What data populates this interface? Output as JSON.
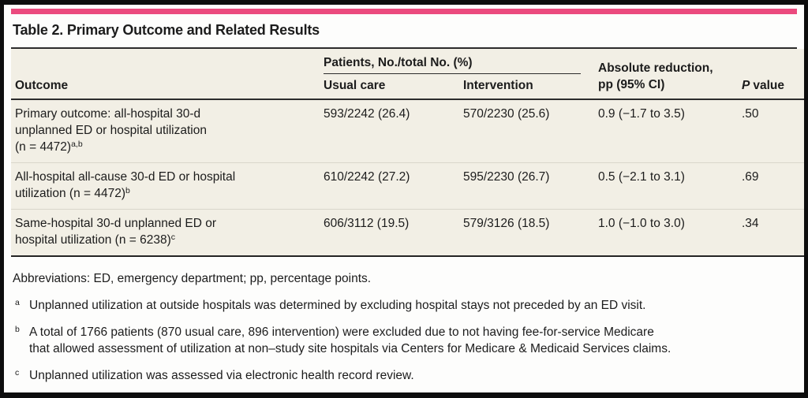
{
  "accent_color": "#EB4A7E",
  "table_bg": "#F2EFE5",
  "title": "Table 2. Primary Outcome and Related Results",
  "header": {
    "spanner": "Patients, No./total No. (%)",
    "outcome": "Outcome",
    "usual_care": "Usual care",
    "intervention": "Intervention",
    "absolute_reduction_line1": "Absolute reduction,",
    "absolute_reduction_line2": "pp (95% CI)",
    "p_italic": "P",
    "p_rest": "value"
  },
  "rows": [
    {
      "outcome_lines": [
        "Primary outcome: all-hospital 30-d",
        "unplanned ED or hospital utilization",
        "(n = 4472)"
      ],
      "outcome_sup": "a,b",
      "usual_care": "593/2242 (26.4)",
      "intervention": "570/2230 (25.6)",
      "absolute_reduction": "0.9 (−1.7 to 3.5)",
      "p_value": ".50"
    },
    {
      "outcome_lines": [
        "All-hospital all-cause 30-d ED or hospital",
        "utilization (n = 4472)"
      ],
      "outcome_sup": "b",
      "usual_care": "610/2242 (27.2)",
      "intervention": "595/2230 (26.7)",
      "absolute_reduction": "0.5 (−2.1 to 3.1)",
      "p_value": ".69"
    },
    {
      "outcome_lines": [
        "Same-hospital 30-d unplanned ED or",
        "hospital utilization (n = 6238)"
      ],
      "outcome_sup": "c",
      "usual_care": "606/3112 (19.5)",
      "intervention": "579/3126 (18.5)",
      "absolute_reduction": "1.0 (−1.0 to 3.0)",
      "p_value": ".34"
    }
  ],
  "footnotes": {
    "abbreviations": "Abbreviations: ED, emergency department; pp, percentage points.",
    "items": [
      {
        "marker": "a",
        "lines": [
          "Unplanned utilization at outside hospitals was determined by excluding hospital stays not preceded by an ED visit."
        ]
      },
      {
        "marker": "b",
        "lines": [
          "A total of 1766 patients (870 usual care, 896 intervention) were excluded due to not having fee-for-service Medicare",
          "that allowed assessment of utilization at non–study site hospitals via Centers for Medicare & Medicaid Services claims."
        ]
      },
      {
        "marker": "c",
        "lines": [
          "Unplanned utilization was assessed via electronic health record review."
        ]
      }
    ]
  }
}
